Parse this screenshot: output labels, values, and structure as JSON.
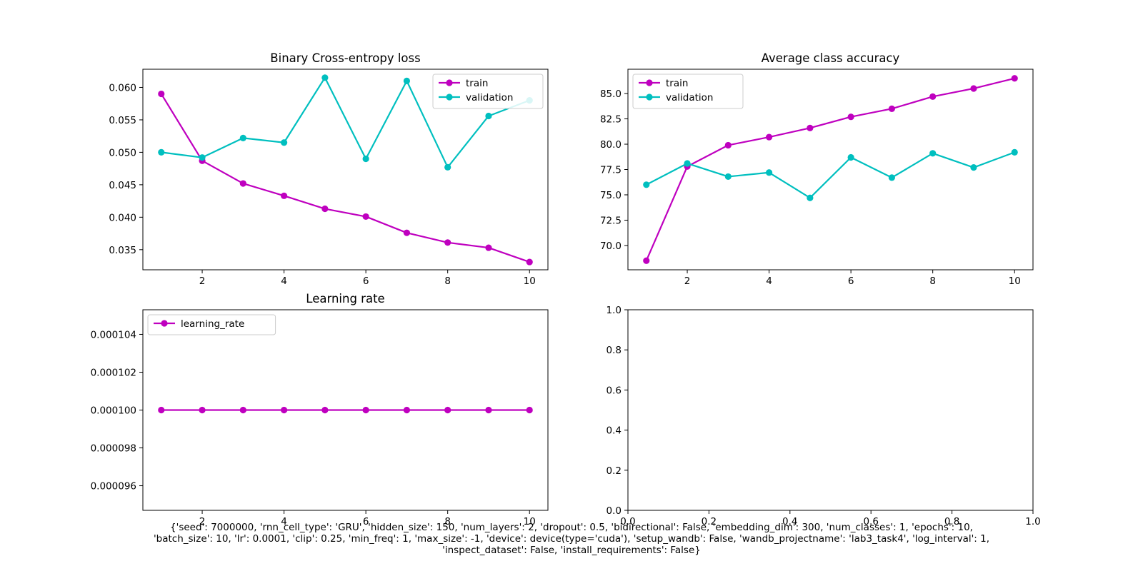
{
  "chart_data": [
    {
      "type": "line",
      "title": "Binary Cross-entropy loss",
      "x": [
        1,
        2,
        3,
        4,
        5,
        6,
        7,
        8,
        9,
        10
      ],
      "xlim": [
        0.55,
        10.45
      ],
      "ylim": [
        0.0319,
        0.0628
      ],
      "xticks": [
        2,
        4,
        6,
        8,
        10
      ],
      "yticks": [
        0.035,
        0.04,
        0.045,
        0.05,
        0.055,
        0.06
      ],
      "ytick_labels": [
        "0.035",
        "0.040",
        "0.045",
        "0.050",
        "0.055",
        "0.060"
      ],
      "legend": "upper right",
      "grid": false,
      "series": [
        {
          "name": "train",
          "color": "#bf00bf",
          "values": [
            0.059,
            0.0487,
            0.0452,
            0.0433,
            0.0413,
            0.0401,
            0.0376,
            0.0361,
            0.0353,
            0.0331
          ]
        },
        {
          "name": "validation",
          "color": "#00bfbf",
          "values": [
            0.05,
            0.0492,
            0.0522,
            0.0515,
            0.0615,
            0.049,
            0.061,
            0.0477,
            0.0556,
            0.058
          ]
        }
      ]
    },
    {
      "type": "line",
      "title": "Average class accuracy",
      "x": [
        1,
        2,
        3,
        4,
        5,
        6,
        7,
        8,
        9,
        10
      ],
      "xlim": [
        0.55,
        10.45
      ],
      "ylim": [
        67.6,
        87.4
      ],
      "xticks": [
        2,
        4,
        6,
        8,
        10
      ],
      "yticks": [
        70,
        72.5,
        75,
        77.5,
        80,
        82.5,
        85
      ],
      "ytick_labels": [
        "70.0",
        "72.5",
        "75.0",
        "77.5",
        "80.0",
        "82.5",
        "85.0"
      ],
      "legend": "upper left",
      "grid": false,
      "series": [
        {
          "name": "train",
          "color": "#bf00bf",
          "values": [
            68.5,
            77.8,
            79.9,
            80.7,
            81.6,
            82.7,
            83.5,
            84.7,
            85.5,
            86.5
          ]
        },
        {
          "name": "validation",
          "color": "#00bfbf",
          "values": [
            76.0,
            78.1,
            76.8,
            77.2,
            74.7,
            78.7,
            76.7,
            79.1,
            77.7,
            79.2
          ]
        }
      ]
    },
    {
      "type": "line",
      "title": "Learning rate",
      "x": [
        1,
        2,
        3,
        4,
        5,
        6,
        7,
        8,
        9,
        10
      ],
      "xlim": [
        0.55,
        10.45
      ],
      "ylim": [
        9.47e-05,
        0.0001053
      ],
      "xticks": [
        2,
        4,
        6,
        8,
        10
      ],
      "yticks": [
        9.6e-05,
        9.8e-05,
        0.0001,
        0.000102,
        0.000104
      ],
      "ytick_labels": [
        "0.000096",
        "0.000098",
        "0.000100",
        "0.000102",
        "0.000104"
      ],
      "legend": "upper left",
      "grid": false,
      "series": [
        {
          "name": "learning_rate",
          "color": "#bf00bf",
          "values": [
            0.0001,
            0.0001,
            0.0001,
            0.0001,
            0.0001,
            0.0001,
            0.0001,
            0.0001,
            0.0001,
            0.0001
          ]
        }
      ]
    },
    {
      "type": "line",
      "title": "",
      "x": [],
      "xlim": [
        0,
        1
      ],
      "ylim": [
        0,
        1
      ],
      "xticks": [
        0,
        0.2,
        0.4,
        0.6,
        0.8,
        1.0
      ],
      "xtick_labels": [
        "0.0",
        "0.2",
        "0.4",
        "0.6",
        "0.8",
        "1.0"
      ],
      "yticks": [
        0,
        0.2,
        0.4,
        0.6,
        0.8,
        1.0
      ],
      "ytick_labels": [
        "0.0",
        "0.2",
        "0.4",
        "0.6",
        "0.8",
        "1.0"
      ],
      "grid": false,
      "series": []
    }
  ],
  "caption_lines": [
    "{'seed': 7000000, 'rnn_cell_type': 'GRU', 'hidden_size': 150, 'num_layers': 2, 'dropout': 0.5, 'bidirectional': False, 'embedding_dim': 300, 'num_classes': 1, 'epochs': 10,",
    "'batch_size': 10, 'lr': 0.0001, 'clip': 0.25, 'min_freq': 1, 'max_size': -1, 'device': device(type='cuda'), 'setup_wandb': False, 'wandb_projectname': 'lab3_task4', 'log_interval': 1,",
    "'inspect_dataset': False, 'install_requirements': False}"
  ]
}
